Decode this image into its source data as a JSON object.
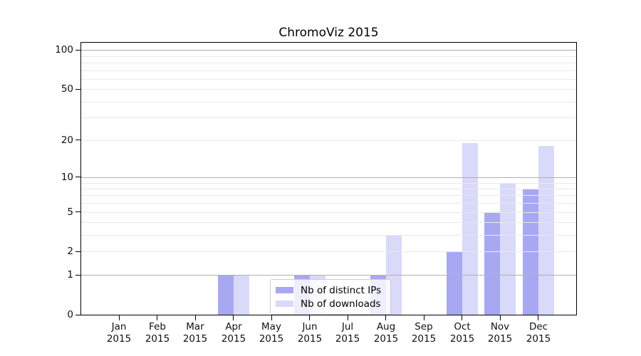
{
  "title": "ChromoViz 2015",
  "chart_data": {
    "type": "bar",
    "title": "ChromoViz 2015",
    "categories": [
      "Jan 2015",
      "Feb 2015",
      "Mar 2015",
      "Apr 2015",
      "May 2015",
      "Jun 2015",
      "Jul 2015",
      "Aug 2015",
      "Sep 2015",
      "Oct 2015",
      "Nov 2015",
      "Dec 2015"
    ],
    "x_tick_lines": [
      {
        "month": "Jan",
        "year": "2015"
      },
      {
        "month": "Feb",
        "year": "2015"
      },
      {
        "month": "Mar",
        "year": "2015"
      },
      {
        "month": "Apr",
        "year": "2015"
      },
      {
        "month": "May",
        "year": "2015"
      },
      {
        "month": "Jun",
        "year": "2015"
      },
      {
        "month": "Jul",
        "year": "2015"
      },
      {
        "month": "Aug",
        "year": "2015"
      },
      {
        "month": "Sep",
        "year": "2015"
      },
      {
        "month": "Oct",
        "year": "2015"
      },
      {
        "month": "Nov",
        "year": "2015"
      },
      {
        "month": "Dec",
        "year": "2015"
      }
    ],
    "series": [
      {
        "name": "Nb of distinct IPs",
        "color": "#a8a8f2",
        "values": [
          0,
          0,
          0,
          1,
          0,
          1,
          0,
          1,
          0,
          2,
          5,
          8
        ]
      },
      {
        "name": "Nb of downloads",
        "color": "#d9d9f9",
        "values": [
          0,
          0,
          0,
          1,
          0,
          1,
          0,
          3,
          0,
          19,
          9,
          18
        ]
      }
    ],
    "yscale": "log1p",
    "ylim": [
      0,
      116
    ],
    "y_ticks": [
      0,
      1,
      2,
      5,
      10,
      20,
      50,
      100
    ],
    "y_major_gridlines": [
      1,
      10,
      100
    ],
    "y_minor_gridlines": [
      2,
      3,
      4,
      5,
      6,
      7,
      8,
      9,
      20,
      30,
      40,
      50,
      60,
      70,
      80,
      90
    ],
    "grid": "horizontal",
    "legend_position": "lower center inside",
    "colors": {
      "major_grid": "#b0b0b0",
      "minor_grid": "#e9e9e9",
      "spine": "#000000",
      "text": "#111111"
    }
  }
}
